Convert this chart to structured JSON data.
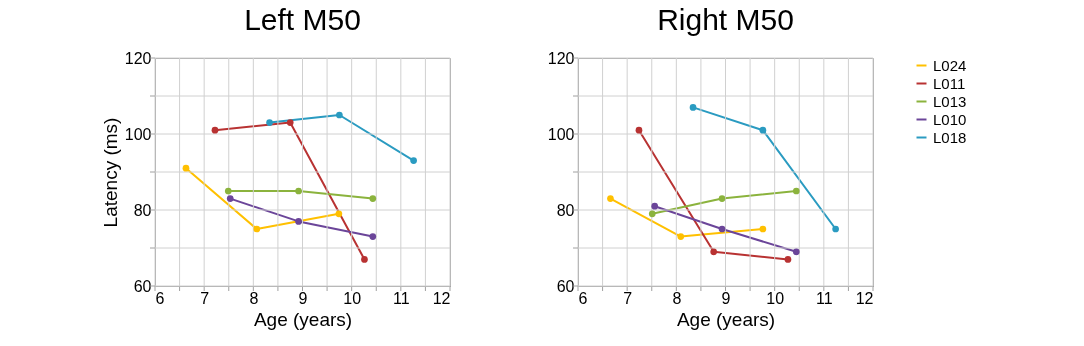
{
  "chart_data": [
    {
      "type": "line",
      "title": "Left M50",
      "xlabel": "Age (years)",
      "ylabel": "Latency (ms)",
      "xlim": [
        6,
        12
      ],
      "ylim": [
        60,
        120
      ],
      "xticks": [
        6,
        {
          "value": 6.5,
          "label": null
        },
        7,
        {
          "value": 7.5,
          "label": null
        },
        8,
        {
          "value": 8.5,
          "label": null
        },
        9,
        {
          "value": 9.5,
          "label": null
        },
        10,
        {
          "value": 10.5,
          "label": null
        },
        11,
        {
          "value": 11.5,
          "label": null
        },
        12
      ],
      "yticks": [
        60,
        {
          "value": 70,
          "label": null
        },
        80,
        {
          "value": 90,
          "label": null
        },
        100,
        {
          "value": 110,
          "label": null
        },
        120
      ],
      "grid": true,
      "marker": "circle",
      "legend": "right",
      "series": [
        {
          "name": "L024",
          "color": "#ffc000",
          "x": [
            6.63,
            8.07,
            9.74
          ],
          "values": [
            91,
            75,
            79
          ]
        },
        {
          "name": "L011",
          "color": "#b83232",
          "x": [
            7.22,
            8.75,
            10.26
          ],
          "values": [
            101,
            103,
            67
          ]
        },
        {
          "name": "L013",
          "color": "#8bb33d",
          "x": [
            7.49,
            8.92,
            10.43
          ],
          "values": [
            85,
            85,
            83
          ]
        },
        {
          "name": "L010",
          "color": "#6b4599",
          "x": [
            7.53,
            8.92,
            10.43
          ],
          "values": [
            83,
            77,
            73
          ]
        },
        {
          "name": "L018",
          "color": "#2a9bc1",
          "x": [
            8.33,
            9.75,
            11.26
          ],
          "values": [
            103,
            105,
            93
          ]
        }
      ]
    },
    {
      "type": "line",
      "title": "Right M50",
      "xlabel": "Age (years)",
      "xlim": [
        6,
        12
      ],
      "ylim": [
        60,
        120
      ],
      "xticks": [
        6,
        {
          "value": 6.5,
          "label": null
        },
        7,
        {
          "value": 7.5,
          "label": null
        },
        8,
        {
          "value": 8.5,
          "label": null
        },
        9,
        {
          "value": 9.5,
          "label": null
        },
        10,
        {
          "value": 10.5,
          "label": null
        },
        11,
        {
          "value": 11.5,
          "label": null
        },
        12
      ],
      "yticks": [
        60,
        {
          "value": 70,
          "label": null
        },
        80,
        {
          "value": 90,
          "label": null
        },
        100,
        {
          "value": 110,
          "label": null
        },
        120
      ],
      "grid": true,
      "marker": "circle",
      "legend": "right",
      "series": [
        {
          "name": "L024",
          "color": "#ffc000",
          "x": [
            6.66,
            8.09,
            9.76
          ],
          "values": [
            83,
            73,
            75
          ]
        },
        {
          "name": "L011",
          "color": "#b83232",
          "x": [
            7.24,
            8.76,
            10.27
          ],
          "values": [
            101,
            69,
            67
          ]
        },
        {
          "name": "L013",
          "color": "#8bb33d",
          "x": [
            7.51,
            8.93,
            10.44
          ],
          "values": [
            79,
            83,
            85
          ]
        },
        {
          "name": "L010",
          "color": "#6b4599",
          "x": [
            7.56,
            8.93,
            10.44
          ],
          "values": [
            81,
            75,
            69
          ]
        },
        {
          "name": "L018",
          "color": "#2a9bc1",
          "x": [
            8.34,
            9.76,
            11.24
          ],
          "values": [
            107,
            101,
            75
          ]
        }
      ]
    }
  ]
}
